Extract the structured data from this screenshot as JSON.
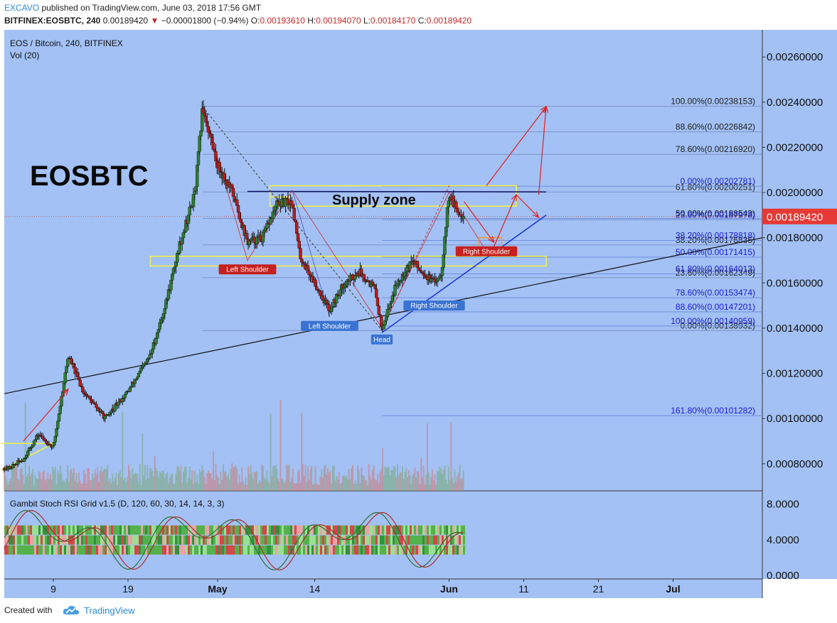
{
  "header": {
    "author": "EXCAVO",
    "published_text": "published on TradingView.com, June 03, 2018 17:56 GMT",
    "symbol": "BITFINEX:EOSBTC, 240",
    "last": "0.00189420",
    "change_arrow": "▼",
    "change": "−0.00001800 (−0.94%)",
    "o_label": "O:",
    "o_val": "0.00193610",
    "h_label": "H:",
    "h_val": "0.00194070",
    "l_label": "L:",
    "l_val": "0.00184170",
    "c_label": "C:",
    "c_val": "0.00189420"
  },
  "legend": {
    "title": "EOS / Bitcoin, 240, BITFINEX",
    "vol": "Vol (20)",
    "rsi": "Gambit Stoch RSI Grid v1.5 (D, 120, 60, 30, 14, 14, 3, 3)"
  },
  "big_label": "EOSBTC",
  "supply_label": "Supply zone",
  "colors": {
    "background": "#a3c1f4",
    "up": "#2e7d32",
    "down": "#b71c1c",
    "price_badge": "#e53935",
    "fib_dark": "#202020",
    "fib_blue": "#1a1ad0",
    "zone": "#f5f53a",
    "trend": "#111111",
    "blue_line": "#1533d6",
    "arrow": "#e02020"
  },
  "chart_data": {
    "type": "candlestick",
    "symbol": "EOS / Bitcoin",
    "timeframe": "240",
    "exchange": "BITFINEX",
    "last_price": 0.0018942,
    "ylim": [
      0.00068,
      0.00272
    ],
    "y_ticks": [
      "0.00260000",
      "0.00240000",
      "0.00220000",
      "0.00200000",
      "0.00180000",
      "0.00160000",
      "0.00140000",
      "0.00120000",
      "0.00100000",
      "0.00080000"
    ],
    "x_ticks": [
      "9",
      "19",
      "May",
      "14",
      "Jun",
      "11",
      "21",
      "Jul"
    ],
    "price_path": [
      [
        "2018-04-03",
        0.00078
      ],
      [
        "2018-04-05",
        0.00082
      ],
      [
        "2018-04-07",
        0.00093
      ],
      [
        "2018-04-09",
        0.00087
      ],
      [
        "2018-04-11",
        0.00128
      ],
      [
        "2018-04-13",
        0.00112
      ],
      [
        "2018-04-16",
        0.001
      ],
      [
        "2018-04-19",
        0.00112
      ],
      [
        "2018-04-22",
        0.00128
      ],
      [
        "2018-04-24",
        0.0015
      ],
      [
        "2018-04-26",
        0.00178
      ],
      [
        "2018-04-28",
        0.002
      ],
      [
        "2018-04-29",
        0.00238
      ],
      [
        "2018-05-01",
        0.00212
      ],
      [
        "2018-05-03",
        0.002
      ],
      [
        "2018-05-05",
        0.00178
      ],
      [
        "2018-05-07",
        0.0018
      ],
      [
        "2018-05-09",
        0.00195
      ],
      [
        "2018-05-11",
        0.00196
      ],
      [
        "2018-05-12",
        0.00172
      ],
      [
        "2018-05-14",
        0.0016
      ],
      [
        "2018-05-16",
        0.00148
      ],
      [
        "2018-05-18",
        0.0016
      ],
      [
        "2018-05-20",
        0.00165
      ],
      [
        "2018-05-22",
        0.00158
      ],
      [
        "2018-05-23",
        0.0014
      ],
      [
        "2018-05-25",
        0.0016
      ],
      [
        "2018-05-27",
        0.0017
      ],
      [
        "2018-05-29",
        0.00163
      ],
      [
        "2018-05-30",
        0.0016
      ],
      [
        "2018-05-31",
        0.00165
      ],
      [
        "2018-06-01",
        0.002
      ],
      [
        "2018-06-02",
        0.00192
      ],
      [
        "2018-06-03",
        0.0018942
      ]
    ],
    "fib_dark": [
      {
        "label": "100.00%(0.00238153)",
        "value": 0.00238153
      },
      {
        "label": "88.60%(0.00226842)",
        "value": 0.00226842
      },
      {
        "label": "78.60%(0.00216920)",
        "value": 0.0021692
      },
      {
        "label": "61.80%(0.00200251)",
        "value": 0.00200251
      },
      {
        "label": "50.00%(0.00188543)",
        "value": 0.00188543
      },
      {
        "label": "38.20%(0.00176835)",
        "value": 0.00176835
      },
      {
        "label": "23.60%(0.00162349)",
        "value": 0.00162349
      },
      {
        "label": "0.00%(0.00138932)",
        "value": 0.00138932
      }
    ],
    "fib_blue": [
      {
        "label": "0.00%(0.00202781)",
        "value": 0.00202781
      },
      {
        "label": "23.60%(0.00187978)",
        "value": 0.00187978
      },
      {
        "label": "38.20%(0.00178818)",
        "value": 0.00178818
      },
      {
        "label": "50.00%(0.00171415)",
        "value": 0.00171415
      },
      {
        "label": "61.80%(0.00164013)",
        "value": 0.00164013
      },
      {
        "label": "78.60%(0.00153474)",
        "value": 0.00153474
      },
      {
        "label": "88.60%(0.00147201)",
        "value": 0.00147201
      },
      {
        "label": "100.00%(0.00140959)",
        "value": 0.00140959
      },
      {
        "label": "161.80%(0.00101282)",
        "value": 0.00101282
      }
    ],
    "annotations": [
      {
        "text": "Left Shoulder",
        "style": "red",
        "date": "2018-05-05",
        "value": 0.00166
      },
      {
        "text": "Left Shoulder",
        "style": "blue",
        "date": "2018-05-16",
        "value": 0.00141
      },
      {
        "text": "Head",
        "style": "blue",
        "date": "2018-05-23",
        "value": 0.00135
      },
      {
        "text": "Right Shoulder",
        "style": "blue",
        "date": "2018-05-30",
        "value": 0.0015
      },
      {
        "text": "Right Shoulder",
        "style": "red",
        "date": "2018-06-06",
        "value": 0.00174
      }
    ],
    "rsi_axis": {
      "ylim": [
        -0.4,
        9.0
      ],
      "ticks": [
        "8.0000",
        "4.0000",
        "0.0000"
      ]
    }
  }
}
